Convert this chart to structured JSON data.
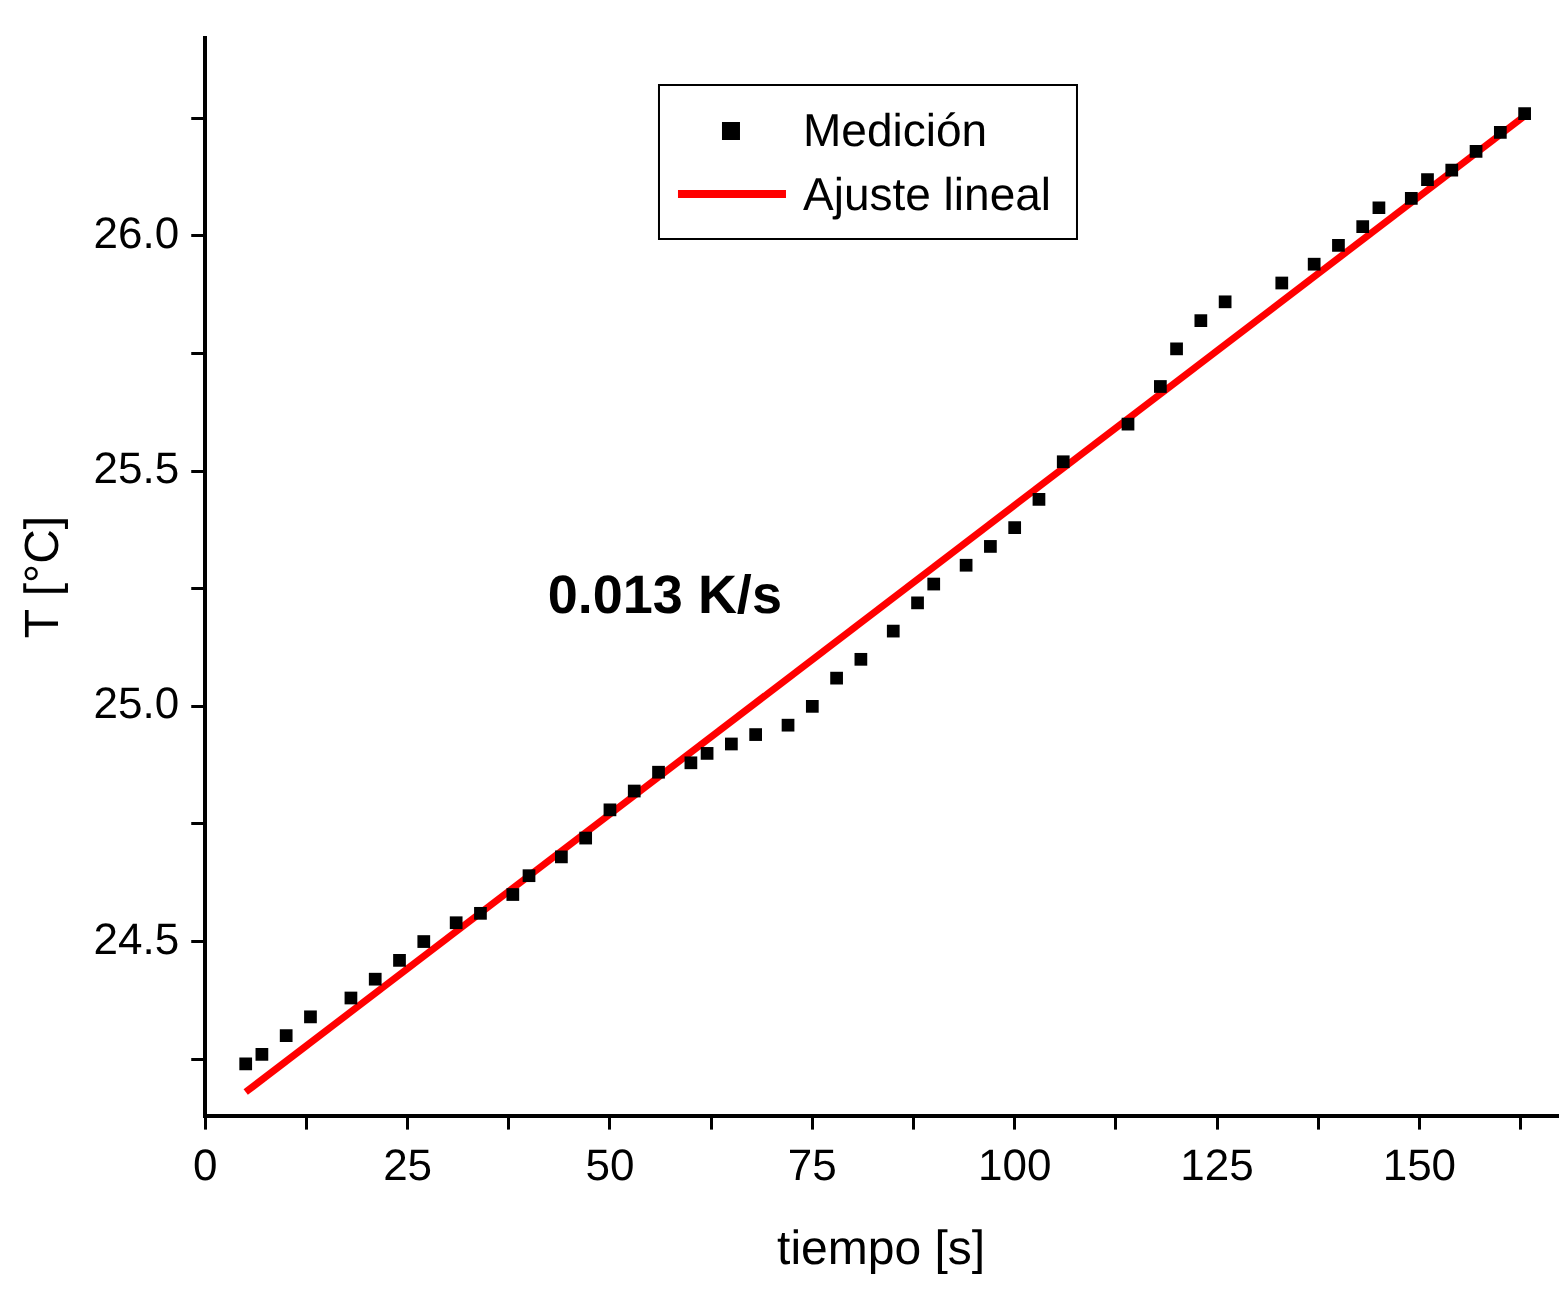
{
  "chart_data": {
    "type": "scatter",
    "xlabel": "tiempo [s]",
    "ylabel": "T [°C]",
    "x": [
      5,
      7,
      10,
      13,
      18,
      21,
      24,
      27,
      31,
      34,
      38,
      40,
      44,
      47,
      50,
      53,
      56,
      60,
      62,
      65,
      68,
      72,
      75,
      78,
      81,
      85,
      88,
      90,
      94,
      97,
      100,
      103,
      106,
      114,
      118,
      120,
      123,
      126,
      133,
      137,
      140,
      143,
      145,
      149,
      151,
      154,
      157,
      160,
      163
    ],
    "series": [
      {
        "name": "Medición",
        "type": "scatter",
        "color": "#000000",
        "marker": "square",
        "values": [
          24.24,
          24.26,
          24.3,
          24.34,
          24.38,
          24.42,
          24.46,
          24.5,
          24.54,
          24.56,
          24.6,
          24.64,
          24.68,
          24.72,
          24.78,
          24.82,
          24.86,
          24.88,
          24.9,
          24.92,
          24.94,
          24.96,
          25.0,
          25.06,
          25.1,
          25.16,
          25.22,
          25.26,
          25.3,
          25.34,
          25.38,
          25.44,
          25.52,
          25.6,
          25.68,
          25.76,
          25.82,
          25.86,
          25.9,
          25.94,
          25.98,
          26.02,
          26.06,
          26.08,
          26.12,
          26.14,
          26.18,
          26.22,
          26.26
        ]
      },
      {
        "name": "Ajuste lineal",
        "type": "line",
        "color": "#ff0000",
        "marker": "none",
        "line_style": "solid",
        "x": [
          5,
          163
        ],
        "values": [
          24.18,
          26.255
        ]
      }
    ],
    "xlim": [
      0,
      167
    ],
    "xticks": [
      0,
      {
        "value": 12.5,
        "label": null
      },
      25,
      {
        "value": 37.5,
        "label": null
      },
      50,
      {
        "value": 62.5,
        "label": null
      },
      75,
      {
        "value": 87.5,
        "label": null
      },
      100,
      {
        "value": 112.5,
        "label": null
      },
      125,
      {
        "value": 137.5,
        "label": null
      },
      150,
      {
        "value": 162.5,
        "label": null
      }
    ],
    "ylim": [
      24.13,
      26.42
    ],
    "yticks": [
      {
        "value": 24.25,
        "label": null
      },
      24.5,
      {
        "value": 24.75,
        "label": null
      },
      {
        "value": 25,
        "label": "25.0"
      },
      {
        "value": 25.25,
        "label": null
      },
      25.5,
      {
        "value": 25.75,
        "label": null
      },
      {
        "value": 26,
        "label": "26.0"
      },
      {
        "value": 26.25,
        "label": null
      }
    ],
    "grid": false,
    "legend": "top",
    "annotations": [
      "0.013 K/s"
    ]
  }
}
